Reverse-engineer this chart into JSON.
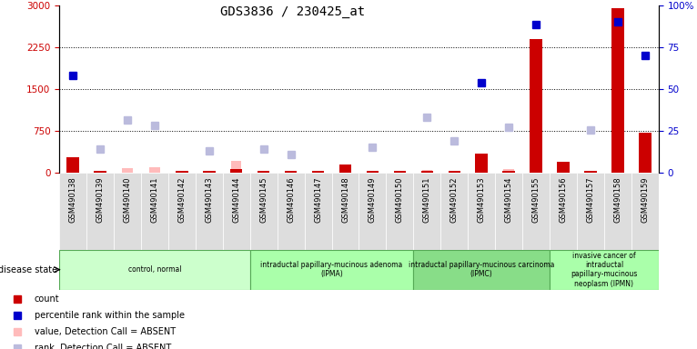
{
  "title": "GDS3836 / 230425_at",
  "samples": [
    "GSM490138",
    "GSM490139",
    "GSM490140",
    "GSM490141",
    "GSM490142",
    "GSM490143",
    "GSM490144",
    "GSM490145",
    "GSM490146",
    "GSM490147",
    "GSM490148",
    "GSM490149",
    "GSM490150",
    "GSM490151",
    "GSM490152",
    "GSM490153",
    "GSM490154",
    "GSM490155",
    "GSM490156",
    "GSM490157",
    "GSM490158",
    "GSM490159"
  ],
  "count": [
    270,
    30,
    0,
    0,
    30,
    30,
    60,
    30,
    30,
    30,
    150,
    30,
    30,
    30,
    30,
    350,
    30,
    2400,
    200,
    30,
    2950,
    720
  ],
  "percentile_rank": [
    1750,
    null,
    null,
    null,
    null,
    null,
    null,
    null,
    null,
    null,
    null,
    null,
    null,
    null,
    null,
    1620,
    null,
    2650,
    null,
    null,
    2700,
    2100
  ],
  "rank_absent": [
    null,
    420,
    950,
    850,
    null,
    400,
    null,
    430,
    330,
    null,
    null,
    450,
    null,
    1000,
    570,
    null,
    820,
    null,
    null,
    770,
    null,
    null
  ],
  "value_absent": [
    null,
    null,
    80,
    100,
    null,
    null,
    220,
    null,
    null,
    null,
    null,
    null,
    null,
    50,
    null,
    null,
    60,
    null,
    null,
    null,
    null,
    null
  ],
  "ylim_left": [
    0,
    3000
  ],
  "yticks_left": [
    0,
    750,
    1500,
    2250,
    3000
  ],
  "yticks_right": [
    "0",
    "25",
    "50",
    "75",
    "100%"
  ],
  "hlines": [
    750,
    1500,
    2250
  ],
  "groups": [
    {
      "label": "control, normal",
      "start": 0,
      "end": 7,
      "color": "#ccffcc"
    },
    {
      "label": "intraductal papillary-mucinous adenoma\n(IPMA)",
      "start": 7,
      "end": 13,
      "color": "#aaffaa"
    },
    {
      "label": "intraductal papillary-mucinous carcinoma\n(IPMC)",
      "start": 13,
      "end": 18,
      "color": "#88dd88"
    },
    {
      "label": "invasive cancer of\nintraductal\npapillary-mucinous\nneoplasm (IPMN)",
      "start": 18,
      "end": 22,
      "color": "#aaffaa"
    }
  ],
  "legend_items": [
    {
      "label": "count",
      "color": "#cc0000"
    },
    {
      "label": "percentile rank within the sample",
      "color": "#0000cc"
    },
    {
      "label": "value, Detection Call = ABSENT",
      "color": "#ffbbbb"
    },
    {
      "label": "rank, Detection Call = ABSENT",
      "color": "#bbbbdd"
    }
  ],
  "bar_color": "#cc0000",
  "rank_color": "#0000cc",
  "absent_bar_color": "#ffbbbb",
  "absent_rank_color": "#bbbbdd",
  "bg_color": "#ffffff",
  "plot_bg": "#ffffff",
  "cell_bg": "#dddddd"
}
